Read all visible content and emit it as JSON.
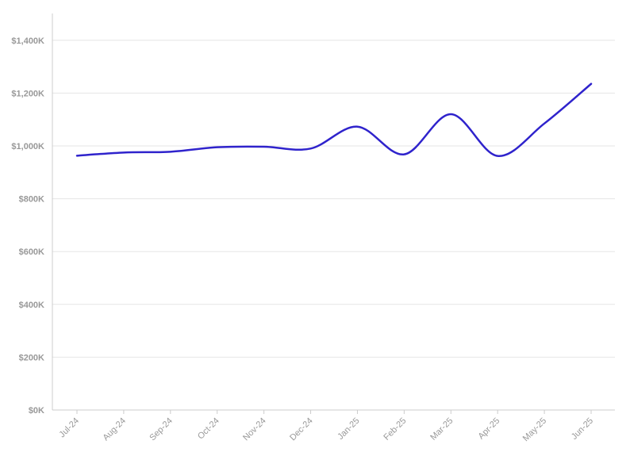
{
  "chart_data": {
    "type": "line",
    "title": "",
    "xlabel": "",
    "ylabel": "",
    "categories": [
      "Jul-24",
      "Aug-24",
      "Sep-24",
      "Oct-24",
      "Nov-24",
      "Dec-24",
      "Jan-25",
      "Feb-25",
      "Mar-25",
      "Apr-25",
      "May-25",
      "Jun-25"
    ],
    "series": [
      {
        "values": [
          963000,
          975000,
          978000,
          995000,
          997000,
          990000,
          1073000,
          968000,
          1120000,
          962000,
          1085000,
          1235000
        ],
        "color": "#2f23cc"
      }
    ],
    "ylim": [
      0,
      1500000
    ],
    "y_ticks": [
      0,
      200000,
      400000,
      600000,
      800000,
      1000000,
      1200000,
      1400000
    ],
    "y_tick_labels": [
      "$0K",
      "$200K",
      "$400K",
      "$600K",
      "$800K",
      "$1,000K",
      "$1,200K",
      "$1,400K"
    ],
    "grid": true,
    "legend": "none",
    "curve": "smooth",
    "colors": {
      "line": "#2f23cc",
      "grid": "#e6e6e6",
      "axis": "#cccccc",
      "tick_label": "#999999"
    }
  }
}
